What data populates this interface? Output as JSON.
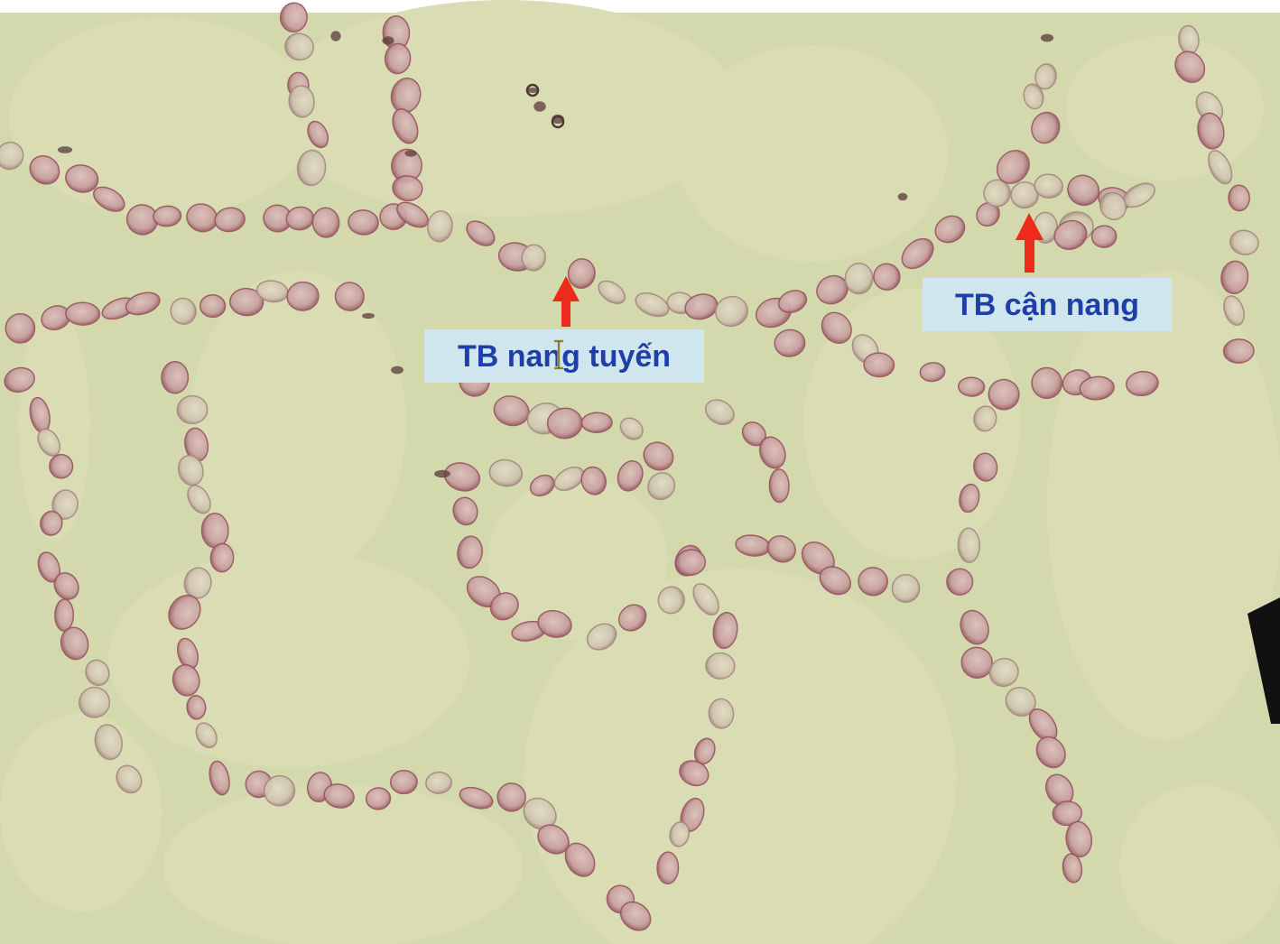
{
  "colors": {
    "background": "#d8dcb3",
    "colloid": "#d6dab0",
    "stroma": "#cbd3a6",
    "nucleus": "#c9a3a2",
    "nucleus_edge": "#9c5d66",
    "label_fill": "#cfe6ee",
    "label_text": "#1f3fa8",
    "arrow": "#ee2a1a"
  },
  "annotations": {
    "follicular_cell_label": "TB nang tuyến",
    "parafollicular_cell_label": "TB cận nang"
  },
  "icons": {
    "cursor": "text-cursor-icon",
    "arrow": "up-arrow-icon"
  }
}
